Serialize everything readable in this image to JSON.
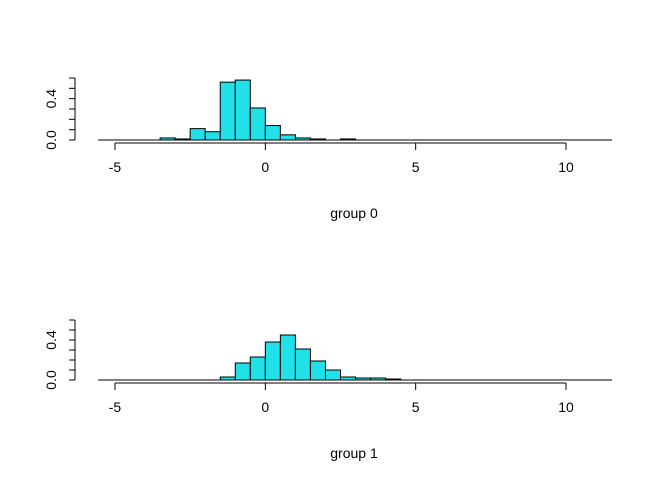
{
  "chart_data": [
    {
      "type": "bar",
      "panel": "group-0",
      "xlabel": "group 0",
      "ylabel": "",
      "xlim": [
        -5.5,
        11.5
      ],
      "ylim": [
        0,
        0.6
      ],
      "xticks": [
        "-5",
        "0",
        "5",
        "10"
      ],
      "xtick_values": [
        -5,
        0,
        5,
        10
      ],
      "yticks": [
        "0.0",
        "0.4"
      ],
      "ytick_values": [
        0,
        0.4
      ],
      "yminor_ticks": [
        0.1,
        0.2,
        0.3,
        0.5,
        0.6
      ],
      "bar_color": "#22e0e8",
      "bin_width": 0.5,
      "bins": [
        {
          "x0": -3.5,
          "y": 0.02
        },
        {
          "x0": -3.0,
          "y": 0.01
        },
        {
          "x0": -2.5,
          "y": 0.11
        },
        {
          "x0": -2.0,
          "y": 0.08
        },
        {
          "x0": -1.5,
          "y": 0.56
        },
        {
          "x0": -1.0,
          "y": 0.58
        },
        {
          "x0": -0.5,
          "y": 0.31
        },
        {
          "x0": 0.0,
          "y": 0.14
        },
        {
          "x0": 0.5,
          "y": 0.05
        },
        {
          "x0": 1.0,
          "y": 0.02
        },
        {
          "x0": 1.5,
          "y": 0.01
        },
        {
          "x0": 2.5,
          "y": 0.01
        }
      ]
    },
    {
      "type": "bar",
      "panel": "group-1",
      "xlabel": "group 1",
      "ylabel": "",
      "xlim": [
        -5.5,
        11.5
      ],
      "ylim": [
        0,
        0.6
      ],
      "xticks": [
        "-5",
        "0",
        "5",
        "10"
      ],
      "xtick_values": [
        -5,
        0,
        5,
        10
      ],
      "yticks": [
        "0.0",
        "0.4"
      ],
      "ytick_values": [
        0,
        0.4
      ],
      "yminor_ticks": [
        0.1,
        0.2,
        0.3,
        0.5,
        0.6
      ],
      "bar_color": "#22e0e8",
      "bin_width": 0.5,
      "bins": [
        {
          "x0": -1.5,
          "y": 0.03
        },
        {
          "x0": -1.0,
          "y": 0.17
        },
        {
          "x0": -0.5,
          "y": 0.23
        },
        {
          "x0": 0.0,
          "y": 0.38
        },
        {
          "x0": 0.5,
          "y": 0.45
        },
        {
          "x0": 1.0,
          "y": 0.31
        },
        {
          "x0": 1.5,
          "y": 0.19
        },
        {
          "x0": 2.0,
          "y": 0.1
        },
        {
          "x0": 2.5,
          "y": 0.03
        },
        {
          "x0": 3.0,
          "y": 0.02
        },
        {
          "x0": 3.5,
          "y": 0.02
        },
        {
          "x0": 4.0,
          "y": 0.01
        }
      ]
    }
  ]
}
